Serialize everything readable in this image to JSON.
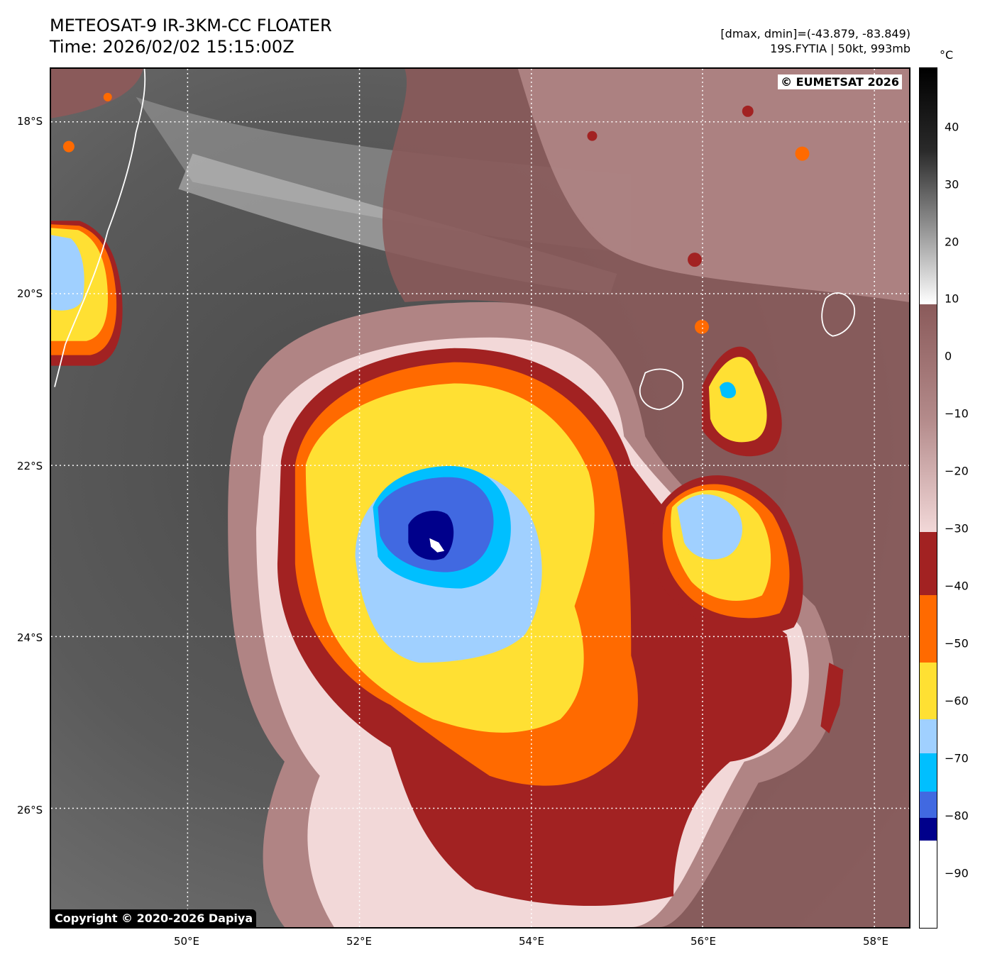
{
  "header": {
    "title_line1": "METEOSAT-9 IR-3KM-CC FLOATER",
    "title_line2": "Time: 2026/02/02 15:15:00Z",
    "info_line1": "[dmax, dmin]=(-43.879, -83.849)",
    "info_line2": "19S.FYTIA | 50kt, 993mb"
  },
  "map": {
    "credit_top": "© EUMETSAT 2026",
    "credit_bottom": "Copyright © 2020-2026 Dapiya",
    "lon_labels": [
      "50°E",
      "52°E",
      "54°E",
      "56°E",
      "58°E"
    ],
    "lat_labels": [
      "18°S",
      "20°S",
      "22°S",
      "24°S",
      "26°S"
    ]
  },
  "colorbar": {
    "unit": "°C",
    "tick_labels": [
      "40",
      "30",
      "20",
      "10",
      "0",
      "−10",
      "−20",
      "−30",
      "−40",
      "−50",
      "−60",
      "−70",
      "−80",
      "−90"
    ],
    "colors": {
      "white": "#ffffff",
      "navy": "#00008b",
      "royal_blue": "#4169e1",
      "deep_sky_blue": "#00bfff",
      "light_sky_blue": "#a0d0ff",
      "yellow": "#ffe033",
      "orange": "#ff6a00",
      "dark_red": "#a22222",
      "pink": "#f2d8d8",
      "mauve": "#8a5a5a",
      "black": "#000000"
    }
  }
}
